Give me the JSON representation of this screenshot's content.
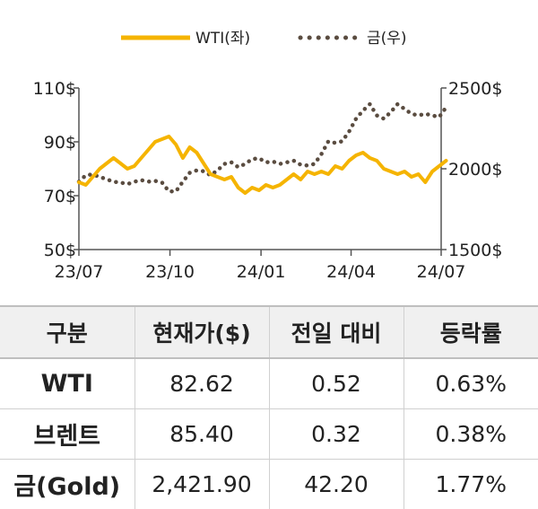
{
  "chart_data": {
    "type": "line",
    "legend_position": "top",
    "x_ticks": [
      "23/07",
      "23/10",
      "24/01",
      "24/04",
      "24/07"
    ],
    "y_left": {
      "min": 50,
      "max": 110,
      "ticks": [
        "110$",
        "90$",
        "70$",
        "50$"
      ]
    },
    "y_right": {
      "min": 1500,
      "max": 2500,
      "ticks": [
        "2500$",
        "2000$",
        "1500$"
      ]
    },
    "series": [
      {
        "name": "WTI(좌)",
        "axis": "left",
        "style": "solid",
        "color": "#f5b400",
        "x": [
          "2023-07-01",
          "2023-07-08",
          "2023-07-15",
          "2023-07-22",
          "2023-07-29",
          "2023-08-05",
          "2023-08-12",
          "2023-08-19",
          "2023-08-26",
          "2023-09-02",
          "2023-09-09",
          "2023-09-16",
          "2023-09-23",
          "2023-09-30",
          "2023-10-07",
          "2023-10-14",
          "2023-10-21",
          "2023-10-28",
          "2023-11-04",
          "2023-11-11",
          "2023-11-18",
          "2023-11-25",
          "2023-12-02",
          "2023-12-09",
          "2023-12-16",
          "2023-12-23",
          "2023-12-30",
          "2024-01-06",
          "2024-01-13",
          "2024-01-20",
          "2024-01-27",
          "2024-02-03",
          "2024-02-10",
          "2024-02-17",
          "2024-02-24",
          "2024-03-02",
          "2024-03-09",
          "2024-03-16",
          "2024-03-23",
          "2024-03-30",
          "2024-04-06",
          "2024-04-13",
          "2024-04-20",
          "2024-04-27",
          "2024-05-04",
          "2024-05-11",
          "2024-05-18",
          "2024-05-25",
          "2024-06-01",
          "2024-06-08",
          "2024-06-15",
          "2024-06-22",
          "2024-06-29",
          "2024-07-06"
        ],
        "values": [
          75,
          74,
          77,
          80,
          82,
          84,
          82,
          80,
          81,
          84,
          87,
          90,
          91,
          92,
          89,
          84,
          88,
          86,
          82,
          78,
          77,
          76,
          77,
          73,
          71,
          73,
          72,
          74,
          73,
          74,
          76,
          78,
          76,
          79,
          78,
          79,
          78,
          81,
          80,
          83,
          85,
          86,
          84,
          83,
          80,
          79,
          78,
          79,
          77,
          78,
          75,
          79,
          81,
          83
        ]
      },
      {
        "name": "금(우)",
        "axis": "right",
        "style": "dotted",
        "color": "#5a4c40",
        "x": [
          "2023-07-01",
          "2023-07-08",
          "2023-07-15",
          "2023-07-22",
          "2023-07-29",
          "2023-08-05",
          "2023-08-12",
          "2023-08-19",
          "2023-08-26",
          "2023-09-02",
          "2023-09-09",
          "2023-09-16",
          "2023-09-23",
          "2023-09-30",
          "2023-10-07",
          "2023-10-14",
          "2023-10-21",
          "2023-10-28",
          "2023-11-04",
          "2023-11-11",
          "2023-11-18",
          "2023-11-25",
          "2023-12-02",
          "2023-12-09",
          "2023-12-16",
          "2023-12-23",
          "2023-12-30",
          "2024-01-06",
          "2024-01-13",
          "2024-01-20",
          "2024-01-27",
          "2024-02-03",
          "2024-02-10",
          "2024-02-17",
          "2024-02-24",
          "2024-03-02",
          "2024-03-09",
          "2024-03-16",
          "2024-03-23",
          "2024-03-30",
          "2024-04-06",
          "2024-04-13",
          "2024-04-20",
          "2024-04-27",
          "2024-05-04",
          "2024-05-11",
          "2024-05-18",
          "2024-05-25",
          "2024-06-01",
          "2024-06-08",
          "2024-06-15",
          "2024-06-22",
          "2024-06-29",
          "2024-07-06"
        ],
        "values": [
          1920,
          1960,
          1965,
          1950,
          1935,
          1920,
          1915,
          1905,
          1920,
          1930,
          1920,
          1925,
          1915,
          1860,
          1860,
          1920,
          1975,
          1990,
          1985,
          1960,
          1990,
          2030,
          2040,
          2010,
          2030,
          2060,
          2065,
          2040,
          2045,
          2030,
          2040,
          2050,
          2025,
          2020,
          2030,
          2090,
          2170,
          2160,
          2170,
          2230,
          2310,
          2360,
          2400,
          2330,
          2310,
          2350,
          2400,
          2370,
          2340,
          2330,
          2340,
          2330,
          2320,
          2380
        ]
      }
    ]
  },
  "table": {
    "headers": [
      "구분",
      "현재가($)",
      "전일 대비",
      "등락률"
    ],
    "rows": [
      [
        "WTI",
        "82.62",
        "0.52",
        "0.63%"
      ],
      [
        "브렌트",
        "85.40",
        "0.32",
        "0.38%"
      ],
      [
        "금(Gold)",
        "2,421.90",
        "42.20",
        "1.77%"
      ]
    ]
  }
}
